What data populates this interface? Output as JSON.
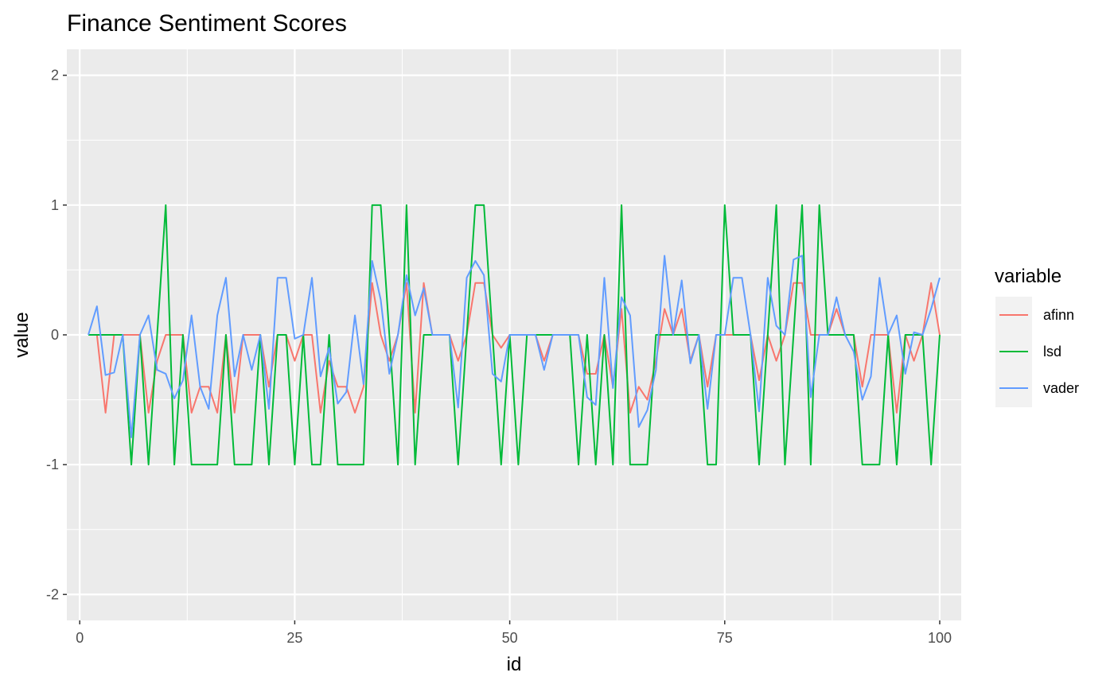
{
  "chart_data": {
    "type": "line",
    "title": "Finance Sentiment Scores",
    "xlabel": "id",
    "ylabel": "value",
    "xlim": [
      -1.5,
      102.5
    ],
    "ylim": [
      -2.2,
      2.2
    ],
    "x_ticks": [
      0,
      25,
      50,
      75,
      100
    ],
    "x_minor": [
      12.5,
      37.5,
      62.5,
      87.5
    ],
    "y_ticks": [
      2,
      1,
      0,
      -1,
      -2
    ],
    "y_minor": [
      1.5,
      0.5,
      -0.5,
      -1.5
    ],
    "grid": true,
    "legend": {
      "title": "variable",
      "position": "right"
    },
    "x": [
      1,
      2,
      3,
      4,
      5,
      6,
      7,
      8,
      9,
      10,
      11,
      12,
      13,
      14,
      15,
      16,
      17,
      18,
      19,
      20,
      21,
      22,
      23,
      24,
      25,
      26,
      27,
      28,
      29,
      30,
      31,
      32,
      33,
      34,
      35,
      36,
      37,
      38,
      39,
      40,
      41,
      42,
      43,
      44,
      45,
      46,
      47,
      48,
      49,
      50,
      51,
      52,
      53,
      54,
      55,
      56,
      57,
      58,
      59,
      60,
      61,
      62,
      63,
      64,
      65,
      66,
      67,
      68,
      69,
      70,
      71,
      72,
      73,
      74,
      75,
      76,
      77,
      78,
      79,
      80,
      81,
      82,
      83,
      84,
      85,
      86,
      87,
      88,
      89,
      90,
      91,
      92,
      93,
      94,
      95,
      96,
      97,
      98,
      99,
      100
    ],
    "series": [
      {
        "name": "afinn",
        "color": "#F8766D",
        "values": [
          0,
          0,
          -0.6,
          0,
          0,
          0,
          0,
          -0.6,
          -0.2,
          0,
          0,
          0,
          -0.6,
          -0.4,
          -0.4,
          -0.6,
          0,
          -0.6,
          0,
          0,
          0,
          -0.4,
          0,
          0,
          -0.2,
          0,
          0,
          -0.6,
          -0.2,
          -0.4,
          -0.4,
          -0.6,
          -0.4,
          0.4,
          0,
          -0.2,
          0,
          0.4,
          -0.6,
          0.4,
          0,
          0,
          0,
          -0.2,
          0,
          0.4,
          0.4,
          0,
          -0.1,
          0,
          0,
          0,
          0,
          -0.2,
          0,
          0,
          0,
          0,
          -0.3,
          -0.3,
          0,
          -0.4,
          0.2,
          -0.6,
          -0.4,
          -0.5,
          -0.2,
          0.2,
          0,
          0.2,
          -0.2,
          0,
          -0.4,
          0,
          0,
          0,
          0,
          0,
          -0.35,
          0,
          -0.2,
          0,
          0.4,
          0.4,
          0,
          0,
          0,
          0.2,
          0,
          0,
          -0.4,
          0,
          0,
          0,
          -0.6,
          0,
          -0.2,
          0,
          0.4,
          0
        ]
      },
      {
        "name": "lsd",
        "color": "#00BA38",
        "values": [
          0,
          0,
          0,
          0,
          0,
          -1,
          0,
          -1,
          0,
          1,
          -1,
          0,
          -1,
          -1,
          -1,
          -1,
          0,
          -1,
          -1,
          -1,
          0,
          -1,
          0,
          0,
          -1,
          0,
          -1,
          -1,
          0,
          -1,
          -1,
          -1,
          -1,
          1,
          1,
          0,
          -1,
          1,
          -1,
          0,
          0,
          0,
          0,
          -1,
          0,
          1,
          1,
          0,
          -1,
          0,
          -1,
          0,
          0,
          0,
          0,
          0,
          0,
          -1,
          0,
          -1,
          0,
          -1,
          1,
          -1,
          -1,
          -1,
          0,
          0,
          0,
          0,
          0,
          0,
          -1,
          -1,
          1,
          0,
          0,
          0,
          -1,
          0,
          1,
          -1,
          0,
          1,
          -1,
          1,
          0,
          0,
          0,
          0,
          -1,
          -1,
          -1,
          0,
          -1,
          0,
          0,
          0,
          -1,
          0
        ]
      },
      {
        "name": "vader",
        "color": "#619CFF",
        "values": [
          0,
          0.22,
          -0.31,
          -0.29,
          0,
          -0.79,
          0,
          0.15,
          -0.27,
          -0.3,
          -0.49,
          -0.35,
          0.15,
          -0.4,
          -0.57,
          0.15,
          0.44,
          -0.32,
          0,
          -0.27,
          0,
          -0.57,
          0.44,
          0.44,
          -0.03,
          0,
          0.44,
          -0.32,
          -0.1,
          -0.53,
          -0.44,
          0.15,
          -0.38,
          0.57,
          0.27,
          -0.3,
          0,
          0.46,
          0.15,
          0.36,
          0,
          0,
          0,
          -0.56,
          0.44,
          0.57,
          0.46,
          -0.3,
          -0.36,
          0,
          0,
          0,
          0,
          -0.27,
          0,
          0,
          0,
          0,
          -0.48,
          -0.54,
          0.44,
          -0.41,
          0.29,
          0.15,
          -0.71,
          -0.58,
          -0.27,
          0.61,
          0,
          0.42,
          -0.22,
          0,
          -0.57,
          0,
          0,
          0.44,
          0.44,
          0,
          -0.59,
          0.44,
          0.07,
          0,
          0.58,
          0.61,
          -0.48,
          0,
          0,
          0.29,
          0,
          -0.13,
          -0.5,
          -0.32,
          0.44,
          0,
          0.15,
          -0.3,
          0.02,
          0,
          0.2,
          0.44
        ]
      }
    ]
  }
}
